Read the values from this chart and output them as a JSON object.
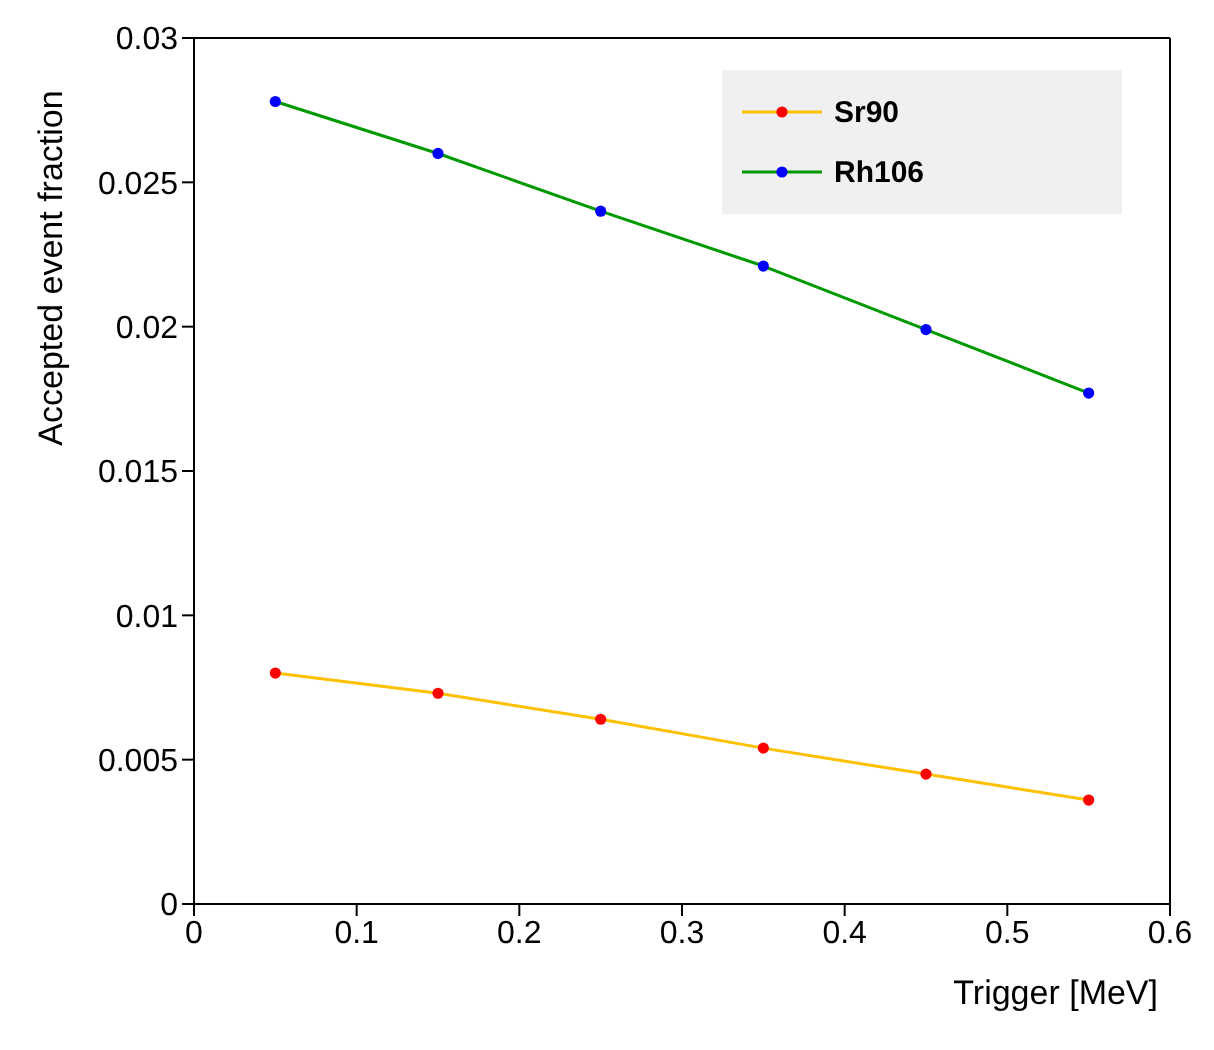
{
  "chart_data": {
    "type": "line",
    "xlabel": "Trigger [MeV]",
    "ylabel": "Accepted event fraction",
    "x": [
      0.05,
      0.15,
      0.25,
      0.35,
      0.45,
      0.55
    ],
    "series": [
      {
        "name": "Sr90",
        "color": "#ffc000",
        "colors": [
          "#ff0000",
          "#ff0000",
          "#ff0000",
          "#ff0000",
          "#ff0000",
          "#ff0000"
        ],
        "values": [
          0.008,
          0.0073,
          0.0064,
          0.0054,
          0.0045,
          0.0036
        ]
      },
      {
        "name": "Rh106",
        "color": "#009900",
        "colors": [
          "#0000ff",
          "#0000ff",
          "#0000ff",
          "#0000ff",
          "#0000ff",
          "#0000ff"
        ],
        "values": [
          0.0278,
          0.026,
          0.024,
          0.0221,
          0.0199,
          0.0177
        ]
      }
    ],
    "xlim": [
      0,
      0.6
    ],
    "xticks": [
      0,
      0.1,
      0.2,
      0.3,
      0.4,
      0.5,
      0.6
    ],
    "ylim": [
      0,
      0.03
    ],
    "yticks": [
      0,
      0.005,
      0.01,
      0.015,
      0.02,
      0.025,
      0.03
    ],
    "legend": "top right",
    "marker": "circle",
    "line_style": "solid"
  }
}
